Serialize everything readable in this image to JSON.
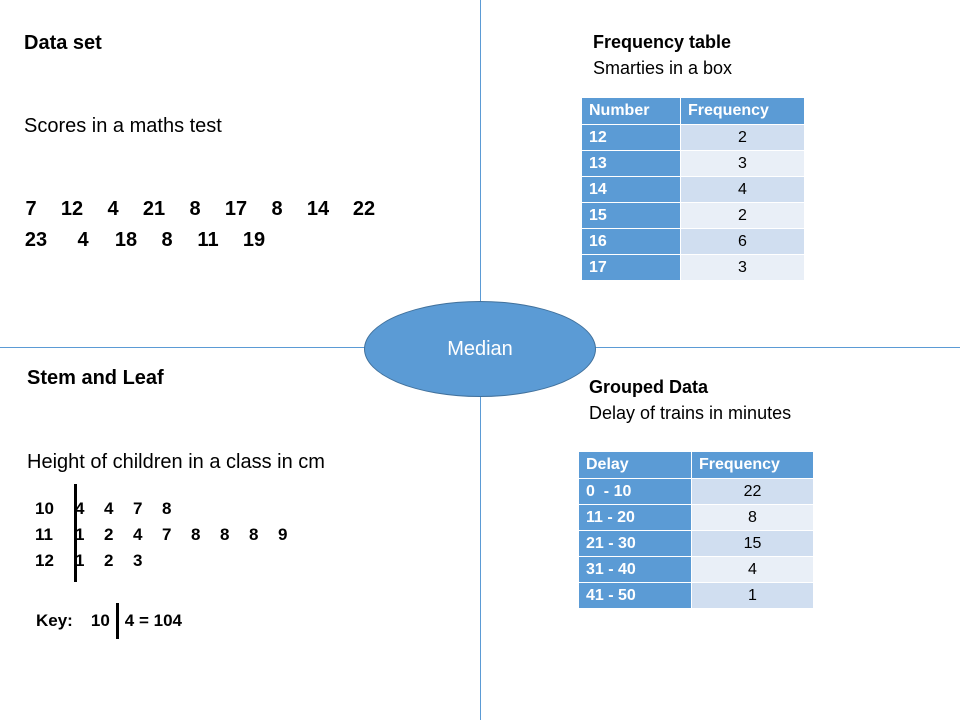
{
  "data_set": {
    "title": "Data set",
    "subtitle": "Scores in a maths test",
    "row1": [
      "7",
      "12",
      "4",
      "21",
      "8",
      "17",
      "8",
      "14",
      "22"
    ],
    "row2": [
      "23",
      "4",
      "18",
      "8",
      "11",
      "19"
    ]
  },
  "frequency_table": {
    "title": "Frequency table",
    "subtitle": "Smarties in a box",
    "headers": [
      "Number",
      "Frequency"
    ],
    "rows": [
      {
        "key": "12",
        "value": "2"
      },
      {
        "key": "13",
        "value": "3"
      },
      {
        "key": "14",
        "value": "4"
      },
      {
        "key": "15",
        "value": "2"
      },
      {
        "key": "16",
        "value": "6"
      },
      {
        "key": "17",
        "value": "3"
      }
    ]
  },
  "center_label": "Median",
  "stem_leaf": {
    "title": "Stem and Leaf",
    "subtitle": "Height of children in a class in cm",
    "rows": [
      {
        "stem": "10",
        "leaves": [
          "4",
          "4",
          "7",
          "8"
        ]
      },
      {
        "stem": "11",
        "leaves": [
          "1",
          "2",
          "4",
          "7",
          "8",
          "8",
          "8",
          "9"
        ]
      },
      {
        "stem": "12",
        "leaves": [
          "1",
          "2",
          "3"
        ]
      }
    ],
    "key": {
      "label": "Key:",
      "stem": "10",
      "leaf_result": "4 = 104"
    }
  },
  "grouped_data": {
    "title": "Grouped Data",
    "subtitle": "Delay of trains in minutes",
    "headers": [
      "Delay",
      "Frequency"
    ],
    "rows": [
      {
        "key": "0  - 10",
        "value": "22"
      },
      {
        "key": "11 - 20",
        "value": "8"
      },
      {
        "key": "21 - 30",
        "value": "15"
      },
      {
        "key": "31 - 40",
        "value": "4"
      },
      {
        "key": "41 - 50",
        "value": "1"
      }
    ]
  },
  "colors": {
    "accent": "#5b9bd5",
    "row_light": "#e9eff7",
    "row_dark": "#d0def0"
  }
}
